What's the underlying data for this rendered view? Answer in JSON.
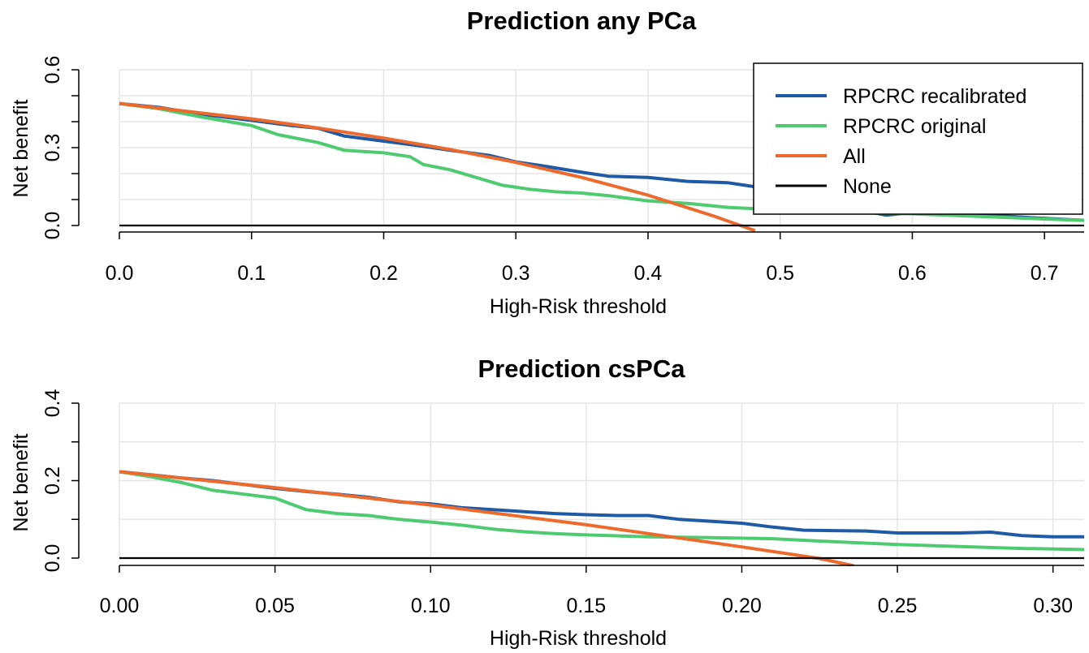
{
  "chart_data": [
    {
      "type": "line",
      "title": "Prediction any PCa",
      "xlabel": "High-Risk threshold",
      "ylabel": "Net benefit",
      "xlim": [
        0.0,
        0.73
      ],
      "ylim": [
        0.0,
        0.6
      ],
      "xticks": [
        "0.0",
        "0.1",
        "0.2",
        "0.3",
        "0.4",
        "0.5",
        "0.6",
        "0.7"
      ],
      "yticks": [
        "0.0",
        "0.3",
        "0.6"
      ],
      "grid": true,
      "legend_position": "top-right",
      "series": [
        {
          "name": "RPCRC recalibrated",
          "color": "#1f5aa6",
          "points": [
            [
              0.0,
              0.47
            ],
            [
              0.03,
              0.455
            ],
            [
              0.06,
              0.43
            ],
            [
              0.1,
              0.405
            ],
            [
              0.13,
              0.385
            ],
            [
              0.15,
              0.375
            ],
            [
              0.17,
              0.345
            ],
            [
              0.2,
              0.325
            ],
            [
              0.23,
              0.305
            ],
            [
              0.25,
              0.29
            ],
            [
              0.28,
              0.27
            ],
            [
              0.3,
              0.245
            ],
            [
              0.32,
              0.23
            ],
            [
              0.35,
              0.205
            ],
            [
              0.37,
              0.19
            ],
            [
              0.4,
              0.185
            ],
            [
              0.43,
              0.17
            ],
            [
              0.46,
              0.165
            ],
            [
              0.48,
              0.15
            ],
            [
              0.5,
              0.14
            ],
            [
              0.52,
              0.11
            ],
            [
              0.54,
              0.09
            ],
            [
              0.56,
              0.06
            ],
            [
              0.58,
              0.04
            ],
            [
              0.6,
              0.05
            ],
            [
              0.63,
              0.05
            ],
            [
              0.66,
              0.04
            ],
            [
              0.69,
              0.03
            ],
            [
              0.73,
              0.02
            ]
          ]
        },
        {
          "name": "RPCRC original",
          "color": "#4ecb71",
          "points": [
            [
              0.0,
              0.47
            ],
            [
              0.03,
              0.45
            ],
            [
              0.06,
              0.42
            ],
            [
              0.1,
              0.385
            ],
            [
              0.12,
              0.35
            ],
            [
              0.15,
              0.32
            ],
            [
              0.17,
              0.29
            ],
            [
              0.2,
              0.28
            ],
            [
              0.22,
              0.265
            ],
            [
              0.23,
              0.235
            ],
            [
              0.25,
              0.215
            ],
            [
              0.27,
              0.185
            ],
            [
              0.29,
              0.155
            ],
            [
              0.31,
              0.14
            ],
            [
              0.33,
              0.13
            ],
            [
              0.35,
              0.125
            ],
            [
              0.37,
              0.115
            ],
            [
              0.4,
              0.095
            ],
            [
              0.43,
              0.085
            ],
            [
              0.46,
              0.07
            ],
            [
              0.5,
              0.06
            ],
            [
              0.55,
              0.05
            ],
            [
              0.6,
              0.045
            ],
            [
              0.65,
              0.035
            ],
            [
              0.7,
              0.025
            ],
            [
              0.73,
              0.02
            ]
          ]
        },
        {
          "name": "All",
          "color": "#ee6a2c",
          "points": [
            [
              0.0,
              0.47
            ],
            [
              0.1,
              0.411
            ],
            [
              0.15,
              0.376
            ],
            [
              0.2,
              0.337
            ],
            [
              0.25,
              0.293
            ],
            [
              0.3,
              0.243
            ],
            [
              0.35,
              0.185
            ],
            [
              0.4,
              0.117
            ],
            [
              0.45,
              0.036
            ],
            [
              0.481,
              -0.02
            ]
          ]
        },
        {
          "name": "None",
          "color": "#000000",
          "points": [
            [
              0.0,
              0.0
            ],
            [
              0.73,
              0.0
            ]
          ]
        }
      ]
    },
    {
      "type": "line",
      "title": "Prediction csPCa",
      "xlabel": "High-Risk threshold",
      "ylabel": "Net benefit",
      "xlim": [
        0.0,
        0.31
      ],
      "ylim": [
        0.0,
        0.4
      ],
      "xticks": [
        "0.00",
        "0.05",
        "0.10",
        "0.15",
        "0.20",
        "0.25",
        "0.30"
      ],
      "yticks": [
        "0.0",
        "0.2",
        "0.4"
      ],
      "grid": true,
      "series": [
        {
          "name": "RPCRC recalibrated",
          "color": "#1f5aa6",
          "points": [
            [
              0.0,
              0.223
            ],
            [
              0.01,
              0.215
            ],
            [
              0.02,
              0.207
            ],
            [
              0.03,
              0.2
            ],
            [
              0.04,
              0.19
            ],
            [
              0.05,
              0.18
            ],
            [
              0.06,
              0.172
            ],
            [
              0.07,
              0.165
            ],
            [
              0.08,
              0.157
            ],
            [
              0.09,
              0.145
            ],
            [
              0.1,
              0.14
            ],
            [
              0.11,
              0.13
            ],
            [
              0.12,
              0.125
            ],
            [
              0.13,
              0.12
            ],
            [
              0.14,
              0.115
            ],
            [
              0.15,
              0.112
            ],
            [
              0.16,
              0.11
            ],
            [
              0.17,
              0.11
            ],
            [
              0.18,
              0.1
            ],
            [
              0.19,
              0.095
            ],
            [
              0.2,
              0.09
            ],
            [
              0.21,
              0.08
            ],
            [
              0.22,
              0.072
            ],
            [
              0.24,
              0.07
            ],
            [
              0.25,
              0.065
            ],
            [
              0.27,
              0.065
            ],
            [
              0.28,
              0.067
            ],
            [
              0.29,
              0.058
            ],
            [
              0.3,
              0.055
            ],
            [
              0.31,
              0.055
            ]
          ]
        },
        {
          "name": "RPCRC original",
          "color": "#4ecb71",
          "points": [
            [
              0.0,
              0.223
            ],
            [
              0.01,
              0.21
            ],
            [
              0.02,
              0.195
            ],
            [
              0.03,
              0.175
            ],
            [
              0.04,
              0.165
            ],
            [
              0.05,
              0.155
            ],
            [
              0.06,
              0.125
            ],
            [
              0.07,
              0.115
            ],
            [
              0.08,
              0.11
            ],
            [
              0.09,
              0.1
            ],
            [
              0.1,
              0.093
            ],
            [
              0.11,
              0.085
            ],
            [
              0.12,
              0.075
            ],
            [
              0.13,
              0.068
            ],
            [
              0.14,
              0.063
            ],
            [
              0.15,
              0.06
            ],
            [
              0.17,
              0.055
            ],
            [
              0.19,
              0.053
            ],
            [
              0.21,
              0.05
            ],
            [
              0.23,
              0.042
            ],
            [
              0.25,
              0.035
            ],
            [
              0.27,
              0.03
            ],
            [
              0.29,
              0.025
            ],
            [
              0.31,
              0.022
            ]
          ]
        },
        {
          "name": "All",
          "color": "#ee6a2c",
          "points": [
            [
              0.0,
              0.223
            ],
            [
              0.05,
              0.182
            ],
            [
              0.1,
              0.137
            ],
            [
              0.15,
              0.086
            ],
            [
              0.2,
              0.029
            ],
            [
              0.225,
              -0.001
            ],
            [
              0.236,
              -0.02
            ]
          ]
        },
        {
          "name": "None",
          "color": "#000000",
          "points": [
            [
              0.0,
              0.0
            ],
            [
              0.31,
              0.0
            ]
          ]
        }
      ]
    }
  ]
}
